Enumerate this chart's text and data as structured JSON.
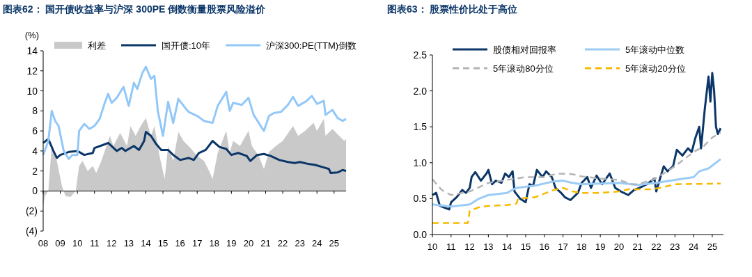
{
  "chart_data": [
    {
      "type": "line",
      "title": "图表62：  国开债收益率与沪深 300PE 倒数衡量股票风险溢价",
      "ylabel": "(%)",
      "legend": "top",
      "xlim": [
        2008,
        2025.7
      ],
      "xticks": [
        {
          "value": 2008,
          "label": "08"
        },
        {
          "value": 2009,
          "label": "09"
        },
        {
          "value": 2010,
          "label": "10"
        },
        {
          "value": 2011,
          "label": "11"
        },
        {
          "value": 2012,
          "label": "12"
        },
        {
          "value": 2013,
          "label": "13"
        },
        {
          "value": 2014,
          "label": "14"
        },
        {
          "value": 2015,
          "label": "15"
        },
        {
          "value": 2016,
          "label": "16"
        },
        {
          "value": 2017,
          "label": "17"
        },
        {
          "value": 2018,
          "label": "18"
        },
        {
          "value": 2019,
          "label": "19"
        },
        {
          "value": 2020,
          "label": "20"
        },
        {
          "value": 2021,
          "label": "21"
        },
        {
          "value": 2022,
          "label": "22"
        },
        {
          "value": 2023,
          "label": "23"
        },
        {
          "value": 2024,
          "label": "24"
        },
        {
          "value": 2025,
          "label": "25"
        }
      ],
      "ylim": [
        -4,
        14
      ],
      "yticks": [
        14,
        12,
        10,
        8,
        6,
        4,
        2,
        0,
        {
          "value": -2,
          "label": "(2)"
        },
        {
          "value": -4,
          "label": "(4)"
        }
      ],
      "series": [
        {
          "name": "利差",
          "type": "area",
          "color": "#c9c9c9",
          "x": [
            2008.0,
            2008.1,
            2008.3,
            2008.5,
            2008.8,
            2009.1,
            2009.3,
            2009.6,
            2009.9,
            2010.1,
            2010.3,
            2010.6,
            2010.9,
            2011.1,
            2011.4,
            2011.7,
            2011.9,
            2012.1,
            2012.5,
            2012.9,
            2013.1,
            2013.4,
            2013.7,
            2014.0,
            2014.3,
            2014.5,
            2014.8,
            2015.1,
            2015.3,
            2015.6,
            2015.9,
            2016.2,
            2016.6,
            2017.0,
            2017.4,
            2017.7,
            2017.9,
            2018.2,
            2018.7,
            2018.9,
            2019.1,
            2019.5,
            2020.0,
            2020.2,
            2020.6,
            2020.9,
            2021.2,
            2021.6,
            2022.0,
            2022.6,
            2022.9,
            2023.3,
            2023.8,
            2024.0,
            2024.4,
            2024.5,
            2024.9,
            2025.3,
            2025.6,
            2025.7
          ],
          "values": [
            -1.5,
            -0.5,
            0,
            4.5,
            3.0,
            0.5,
            -0.5,
            -0.6,
            0,
            2.5,
            3.0,
            2.0,
            2.5,
            1.8,
            3.0,
            4.5,
            5.5,
            4.5,
            5.8,
            4.5,
            6.5,
            5.5,
            6.5,
            7.3,
            5.5,
            6.5,
            3.5,
            1.2,
            4.5,
            3.0,
            5.9,
            5.0,
            4.3,
            3.5,
            3.0,
            2.0,
            1.2,
            3.8,
            6.0,
            3.8,
            5.0,
            4.5,
            6.0,
            4.5,
            3.5,
            2.2,
            3.9,
            4.5,
            5.0,
            6.5,
            5.5,
            6.0,
            6.8,
            6.0,
            7.2,
            5.5,
            6.2,
            5.5,
            5.0,
            5.2
          ]
        },
        {
          "name": "国开债:10年",
          "color": "#0b3668",
          "x": [
            2008.0,
            2008.3,
            2008.6,
            2008.8,
            2009.0,
            2009.5,
            2010.0,
            2010.4,
            2010.9,
            2011.0,
            2011.5,
            2011.8,
            2012.3,
            2012.6,
            2012.8,
            2013.3,
            2013.6,
            2013.9,
            2014.0,
            2014.3,
            2014.6,
            2014.9,
            2015.3,
            2015.6,
            2016.0,
            2016.5,
            2016.8,
            2017.1,
            2017.5,
            2017.9,
            2018.3,
            2018.7,
            2019.0,
            2019.4,
            2019.9,
            2020.1,
            2020.5,
            2020.9,
            2021.3,
            2021.8,
            2022.3,
            2022.7,
            2023.0,
            2023.5,
            2023.9,
            2024.3,
            2024.7,
            2024.8,
            2025.2,
            2025.5,
            2025.7
          ],
          "values": [
            4.8,
            5.2,
            4.0,
            3.3,
            3.6,
            3.9,
            4.0,
            3.6,
            3.8,
            4.3,
            4.6,
            4.8,
            4.0,
            4.3,
            4.0,
            4.5,
            4.1,
            5.0,
            5.9,
            5.5,
            4.7,
            4.1,
            4.1,
            3.6,
            3.1,
            3.3,
            3.1,
            3.8,
            4.1,
            5.0,
            4.4,
            4.2,
            3.6,
            3.8,
            3.5,
            3.0,
            3.6,
            3.7,
            3.5,
            3.1,
            2.9,
            2.8,
            2.9,
            2.7,
            2.6,
            2.4,
            2.2,
            1.8,
            1.85,
            2.1,
            2.0
          ]
        },
        {
          "name": "沪深300:PE(TTM)倒数",
          "color": "#92c8f8",
          "x": [
            2008.0,
            2008.3,
            2008.5,
            2008.7,
            2008.9,
            2009.2,
            2009.5,
            2009.7,
            2010.0,
            2010.1,
            2010.4,
            2010.7,
            2011.0,
            2011.3,
            2011.6,
            2011.8,
            2012.0,
            2012.3,
            2012.7,
            2013.0,
            2013.3,
            2013.5,
            2013.8,
            2014.0,
            2014.3,
            2014.5,
            2014.7,
            2015.0,
            2015.3,
            2015.6,
            2015.9,
            2016.3,
            2016.5,
            2017.0,
            2017.4,
            2017.9,
            2018.2,
            2018.7,
            2018.9,
            2019.1,
            2019.6,
            2020.0,
            2020.3,
            2020.9,
            2021.2,
            2021.5,
            2021.9,
            2022.3,
            2022.6,
            2022.9,
            2023.4,
            2023.7,
            2024.0,
            2024.4,
            2024.5,
            2024.9,
            2025.2,
            2025.5,
            2025.7
          ],
          "values": [
            3.6,
            5.0,
            8.0,
            7.0,
            6.5,
            4.0,
            3.2,
            3.6,
            3.6,
            6.0,
            6.7,
            6.2,
            6.5,
            7.2,
            8.8,
            9.7,
            8.8,
            9.3,
            10.4,
            8.5,
            10.8,
            10.2,
            11.8,
            12.4,
            11.2,
            11.5,
            8.0,
            5.5,
            8.9,
            6.8,
            9.2,
            8.3,
            7.9,
            7.5,
            7.0,
            6.8,
            8.5,
            9.9,
            8.0,
            8.8,
            8.6,
            9.3,
            7.6,
            6.0,
            7.5,
            7.8,
            7.9,
            8.6,
            9.4,
            8.5,
            9.0,
            9.5,
            8.7,
            9.0,
            7.6,
            8.1,
            7.3,
            7.0,
            7.2
          ]
        }
      ]
    },
    {
      "type": "line",
      "title": "图表63：  股票性价比处于高位",
      "legend": "top left",
      "xlim": [
        2010,
        2025.6
      ],
      "xticks": [
        {
          "value": 2010,
          "label": "10"
        },
        {
          "value": 2011,
          "label": "11"
        },
        {
          "value": 2012,
          "label": "12"
        },
        {
          "value": 2013,
          "label": "13"
        },
        {
          "value": 2014,
          "label": "14"
        },
        {
          "value": 2015,
          "label": "15"
        },
        {
          "value": 2016,
          "label": "16"
        },
        {
          "value": 2017,
          "label": "17"
        },
        {
          "value": 2018,
          "label": "18"
        },
        {
          "value": 2019,
          "label": "19"
        },
        {
          "value": 2020,
          "label": "20"
        },
        {
          "value": 2021,
          "label": "21"
        },
        {
          "value": 2022,
          "label": "22"
        },
        {
          "value": 2023,
          "label": "23"
        },
        {
          "value": 2024,
          "label": "24"
        },
        {
          "value": 2025,
          "label": "25"
        }
      ],
      "ylim": [
        0,
        2.5
      ],
      "yticks": [
        {
          "value": 2.5,
          "label": "2.5"
        },
        {
          "value": 2,
          "label": "2.0"
        },
        {
          "value": 1.5,
          "label": "1.5"
        },
        {
          "value": 1,
          "label": "1.0"
        },
        {
          "value": 0.5,
          "label": "0.5"
        },
        {
          "value": 0,
          "label": "0.0"
        }
      ],
      "series": [
        {
          "name": "股债相对回报率",
          "color": "#0b3668",
          "x": [
            2010.0,
            2010.2,
            2010.4,
            2010.6,
            2010.9,
            2011.0,
            2011.3,
            2011.6,
            2011.8,
            2012.0,
            2012.1,
            2012.3,
            2012.6,
            2012.9,
            2013.0,
            2013.2,
            2013.4,
            2013.7,
            2013.9,
            2014.1,
            2014.3,
            2014.4,
            2014.7,
            2015.0,
            2015.2,
            2015.4,
            2015.6,
            2015.9,
            2016.1,
            2016.4,
            2016.6,
            2016.9,
            2017.1,
            2017.4,
            2017.8,
            2018.0,
            2018.3,
            2018.5,
            2018.8,
            2019.1,
            2019.5,
            2019.8,
            2020.1,
            2020.5,
            2020.8,
            2021.1,
            2021.5,
            2021.9,
            2022.0,
            2022.2,
            2022.4,
            2022.6,
            2022.9,
            2023.1,
            2023.4,
            2023.7,
            2023.9,
            2024.1,
            2024.3,
            2024.4,
            2024.6,
            2024.8,
            2024.9,
            2025.0,
            2025.1,
            2025.2,
            2025.3,
            2025.45
          ],
          "values": [
            0.55,
            0.58,
            0.4,
            0.38,
            0.35,
            0.45,
            0.52,
            0.62,
            0.58,
            0.65,
            0.8,
            0.87,
            0.75,
            0.85,
            0.9,
            0.7,
            0.75,
            0.72,
            0.85,
            0.8,
            0.88,
            0.6,
            0.5,
            0.45,
            0.7,
            0.68,
            0.9,
            0.8,
            0.88,
            0.8,
            0.65,
            0.58,
            0.52,
            0.48,
            0.58,
            0.72,
            0.8,
            0.65,
            0.82,
            0.7,
            0.85,
            0.65,
            0.6,
            0.55,
            0.62,
            0.65,
            0.7,
            0.78,
            0.6,
            0.78,
            0.95,
            0.88,
            0.95,
            1.18,
            1.1,
            1.2,
            1.15,
            1.35,
            1.5,
            1.2,
            1.75,
            2.2,
            1.85,
            2.25,
            2.0,
            1.5,
            1.4,
            1.48
          ]
        },
        {
          "name": "5年滚动中位数",
          "color": "#9ccbf5",
          "x": [
            2010,
            2011,
            2012,
            2012.5,
            2013,
            2014,
            2014.5,
            2015.5,
            2016.5,
            2017,
            2017.5,
            2018,
            2019,
            2020,
            2021,
            2022,
            2023,
            2024,
            2024.3,
            2024.8,
            2025.45
          ],
          "values": [
            0.42,
            0.39,
            0.42,
            0.5,
            0.55,
            0.58,
            0.65,
            0.68,
            0.74,
            0.75,
            0.72,
            0.7,
            0.71,
            0.72,
            0.69,
            0.72,
            0.76,
            0.8,
            0.88,
            0.92,
            1.05
          ]
        },
        {
          "name": "5年滚动80分位",
          "line_style": "dashed",
          "color": "#b4b4b4",
          "x": [
            2010,
            2010.5,
            2011,
            2012,
            2013,
            2014,
            2015,
            2016,
            2016.7,
            2017.5,
            2018,
            2019,
            2020,
            2020.7,
            2021,
            2021.8,
            2022.4,
            2023,
            2024,
            2024.5,
            2025.0,
            2025.45
          ],
          "values": [
            0.77,
            0.62,
            0.55,
            0.6,
            0.72,
            0.76,
            0.8,
            0.8,
            0.85,
            0.84,
            0.81,
            0.78,
            0.76,
            0.7,
            0.7,
            0.76,
            0.85,
            0.95,
            1.15,
            1.22,
            1.35,
            1.42
          ]
        },
        {
          "name": "5年滚动20分位",
          "line_style": "dashed",
          "color": "#f7b900",
          "x": [
            2010,
            2011.9,
            2012.0,
            2012.5,
            2013,
            2014,
            2014.5,
            2014.6,
            2015.5,
            2016.5,
            2017,
            2017.5,
            2018,
            2019,
            2020,
            2020.5,
            2021,
            2021.7,
            2022.2,
            2022.7,
            2023,
            2025.45
          ],
          "values": [
            0.16,
            0.16,
            0.33,
            0.38,
            0.4,
            0.41,
            0.43,
            0.5,
            0.52,
            0.62,
            0.65,
            0.6,
            0.58,
            0.58,
            0.6,
            0.63,
            0.63,
            0.63,
            0.65,
            0.68,
            0.7,
            0.71
          ]
        }
      ]
    }
  ]
}
